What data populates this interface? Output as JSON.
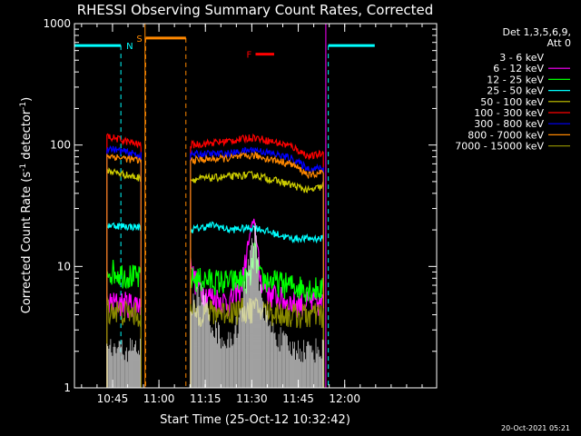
{
  "chart_data": {
    "type": "line",
    "title": "RHESSI Observing Summary Count Rates, Corrected",
    "xlabel": "Start Time (25-Oct-12 10:32:42)",
    "ylabel_parts": {
      "main": "Corrected Count Rate (s",
      "sup1": "-1",
      "mid": " detector",
      "sup2": "-1",
      "end": ")"
    },
    "ylabel": "Corrected Count Rate (s-1 detector-1)",
    "y_scale": "log",
    "ylim": [
      1,
      1000
    ],
    "y_ticks": [
      {
        "value": 1,
        "label": "1"
      },
      {
        "value": 10,
        "label": "10"
      },
      {
        "value": 100,
        "label": "100"
      },
      {
        "value": 1000,
        "label": "1000"
      }
    ],
    "xlim_minutes": [
      0,
      117
    ],
    "x_ticks": [
      {
        "minute": 12.3,
        "label": "10:45"
      },
      {
        "minute": 27.3,
        "label": "11:00"
      },
      {
        "minute": 42.3,
        "label": "11:15"
      },
      {
        "minute": 57.3,
        "label": "11:30"
      },
      {
        "minute": 72.3,
        "label": "11:45"
      },
      {
        "minute": 87.3,
        "label": "12:00"
      }
    ],
    "legend": {
      "placement": "right",
      "header": [
        "Det 1,3,5,6,9,",
        "Att 0"
      ],
      "entries": [
        {
          "label": "3 - 6 keV",
          "color": "#000000"
        },
        {
          "label": "6 - 12 keV",
          "color": "#ff00ff"
        },
        {
          "label": "12 - 25 keV",
          "color": "#00ff00"
        },
        {
          "label": "25 - 50 keV",
          "color": "#00ffff"
        },
        {
          "label": "50 - 100 keV",
          "color": "#cccc00"
        },
        {
          "label": "100 - 300 keV",
          "color": "#ff0000"
        },
        {
          "label": "300 - 800 keV",
          "color": "#0000ff"
        },
        {
          "label": "800 - 7000 keV",
          "color": "#ff8800"
        },
        {
          "label": "7000 - 15000 keV",
          "color": "#888800"
        }
      ]
    },
    "segments": [
      {
        "t0": 10.5,
        "t1": 21.5
      },
      {
        "t0": 37.5,
        "t1": 80.5
      }
    ],
    "series": [
      {
        "name": "3 - 6 keV",
        "color": "#000000",
        "style": "noisy_low",
        "floor": 1,
        "levels": [
          [
            10.5,
            2
          ],
          [
            21.5,
            2
          ],
          [
            37.5,
            4.5
          ],
          [
            41,
            6
          ],
          [
            45,
            3
          ],
          [
            50,
            2.2
          ],
          [
            54,
            4
          ],
          [
            57,
            16
          ],
          [
            58.5,
            18
          ],
          [
            60,
            6
          ],
          [
            63,
            3
          ],
          [
            70,
            2
          ],
          [
            80.5,
            2
          ]
        ]
      },
      {
        "name": "6 - 12 keV",
        "color": "#ff00ff",
        "style": "line",
        "levels": [
          [
            10.5,
            5
          ],
          [
            21.5,
            5
          ],
          [
            37.5,
            14
          ],
          [
            38.5,
            8
          ],
          [
            42,
            6
          ],
          [
            50,
            5
          ],
          [
            54,
            7
          ],
          [
            57,
            20
          ],
          [
            58,
            25
          ],
          [
            60,
            8
          ],
          [
            63,
            6
          ],
          [
            70,
            5
          ],
          [
            80.5,
            5
          ]
        ]
      },
      {
        "name": "12 - 25 keV",
        "color": "#00ff00",
        "style": "line",
        "levels": [
          [
            10.5,
            9.5
          ],
          [
            21.5,
            8
          ],
          [
            37.5,
            8
          ],
          [
            50,
            7.5
          ],
          [
            57,
            8
          ],
          [
            58,
            14
          ],
          [
            60,
            8
          ],
          [
            70,
            7
          ],
          [
            80.5,
            6.5
          ]
        ]
      },
      {
        "name": "25 - 50 keV",
        "color": "#00ffff",
        "style": "line",
        "levels": [
          [
            10.5,
            22
          ],
          [
            21.5,
            21
          ],
          [
            37.5,
            20
          ],
          [
            45,
            22
          ],
          [
            50,
            20
          ],
          [
            58,
            21
          ],
          [
            70,
            17
          ],
          [
            80.5,
            17
          ]
        ]
      },
      {
        "name": "50 - 100 keV",
        "color": "#cccc00",
        "style": "line",
        "levels": [
          [
            10.5,
            62
          ],
          [
            21.5,
            53
          ],
          [
            37.5,
            52
          ],
          [
            50,
            55
          ],
          [
            58,
            57
          ],
          [
            70,
            47
          ],
          [
            76,
            42
          ],
          [
            80.5,
            46
          ]
        ]
      },
      {
        "name": "100 - 300 keV",
        "color": "#ff0000",
        "style": "line",
        "levels": [
          [
            10.5,
            118
          ],
          [
            21.5,
            100
          ],
          [
            37.5,
            100
          ],
          [
            50,
            108
          ],
          [
            58,
            116
          ],
          [
            70,
            98
          ],
          [
            76,
            80
          ],
          [
            80.5,
            86
          ]
        ]
      },
      {
        "name": "300 - 800 keV",
        "color": "#0000ff",
        "style": "line",
        "levels": [
          [
            10.5,
            95
          ],
          [
            21.5,
            82
          ],
          [
            37.5,
            84
          ],
          [
            50,
            85
          ],
          [
            58,
            92
          ],
          [
            70,
            78
          ],
          [
            76,
            63
          ],
          [
            80.5,
            65
          ]
        ]
      },
      {
        "name": "800 - 7000 keV",
        "color": "#ff8800",
        "style": "line",
        "levels": [
          [
            10.5,
            82
          ],
          [
            21.5,
            74
          ],
          [
            37.5,
            75
          ],
          [
            50,
            78
          ],
          [
            58,
            82
          ],
          [
            70,
            70
          ],
          [
            76,
            56
          ],
          [
            80.5,
            60
          ]
        ]
      },
      {
        "name": "7000 - 15000 keV",
        "color": "#888800",
        "style": "line",
        "levels": [
          [
            10.5,
            4.5
          ],
          [
            21.5,
            4
          ],
          [
            37.5,
            4.2
          ],
          [
            50,
            4.3
          ],
          [
            58,
            4.5
          ],
          [
            70,
            4
          ],
          [
            80.5,
            4
          ]
        ]
      }
    ],
    "flag_bars": [
      {
        "label": "N",
        "color": "#00ffff",
        "y": 660,
        "ranges": [
          [
            0,
            15
          ],
          [
            82,
            97
          ]
        ],
        "dividers": [
          15,
          82
        ]
      },
      {
        "label": "S",
        "color": "#ff8800",
        "y": 760,
        "ranges": [
          [
            23,
            36
          ]
        ],
        "dividers": [
          23,
          36
        ]
      },
      {
        "label": "F",
        "color": "#ff0000",
        "y": 560,
        "ranges": [
          [
            58.5,
            64.5
          ]
        ],
        "dividers": []
      }
    ],
    "attenuator_lines": [
      {
        "minute": 22.8,
        "color": "#ff8800"
      },
      {
        "minute": 81.2,
        "color": "#ff00ff"
      }
    ],
    "grid": false
  },
  "footer": {
    "timestamp": "20-Oct-2021 05:21"
  }
}
